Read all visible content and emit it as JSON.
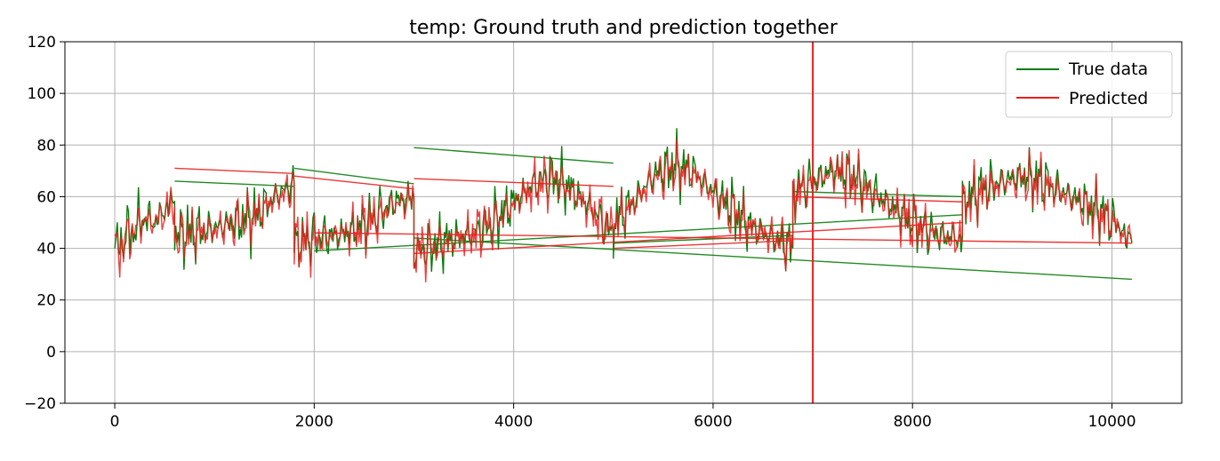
{
  "chart_data": {
    "type": "line",
    "title": "temp: Ground truth and prediction together",
    "xlabel": "",
    "ylabel": "",
    "xlim": [
      -500,
      10700
    ],
    "ylim": [
      -20,
      120
    ],
    "x_ticks": [
      0,
      2000,
      4000,
      6000,
      8000,
      10000
    ],
    "y_ticks": [
      -20,
      0,
      20,
      40,
      60,
      80,
      100,
      120
    ],
    "grid": true,
    "legend_position": "top-right",
    "vertical_marker": {
      "x": 7000,
      "color": "#e8201e"
    },
    "series": [
      {
        "name": "True data",
        "color": "#0a7d0a",
        "segments": [
          [
            [
              0,
              40
            ],
            [
              100,
              44
            ],
            [
              200,
              48
            ],
            [
              300,
              52
            ],
            [
              400,
              50
            ],
            [
              500,
              55
            ],
            [
              600,
              58
            ]
          ],
          [
            [
              600,
              45
            ],
            [
              800,
              46
            ],
            [
              1000,
              48
            ],
            [
              1200,
              50
            ],
            [
              1400,
              52
            ],
            [
              1600,
              60
            ],
            [
              1800,
              65
            ]
          ],
          [
            [
              1800,
              42
            ],
            [
              2000,
              44
            ],
            [
              2200,
              45
            ],
            [
              2400,
              47
            ],
            [
              2600,
              52
            ],
            [
              2800,
              58
            ],
            [
              3000,
              60
            ]
          ],
          [
            [
              3000,
              38
            ],
            [
              3200,
              41
            ],
            [
              3400,
              44
            ],
            [
              3600,
              46
            ],
            [
              3800,
              50
            ],
            [
              4000,
              58
            ],
            [
              4200,
              65
            ],
            [
              4400,
              68
            ],
            [
              4600,
              62
            ],
            [
              4800,
              55
            ],
            [
              5000,
              45
            ]
          ],
          [
            [
              5000,
              50
            ],
            [
              5200,
              58
            ],
            [
              5400,
              68
            ],
            [
              5600,
              72
            ],
            [
              5800,
              70
            ],
            [
              6000,
              62
            ],
            [
              6200,
              55
            ],
            [
              6400,
              48
            ],
            [
              6600,
              44
            ],
            [
              6800,
              40
            ]
          ],
          [
            [
              6800,
              62
            ],
            [
              7000,
              66
            ],
            [
              7200,
              70
            ],
            [
              7400,
              68
            ],
            [
              7600,
              62
            ],
            [
              7800,
              56
            ],
            [
              8000,
              50
            ],
            [
              8200,
              46
            ],
            [
              8400,
              44
            ],
            [
              8500,
              44
            ]
          ],
          [
            [
              8500,
              58
            ],
            [
              8700,
              63
            ],
            [
              8900,
              66
            ],
            [
              9100,
              68
            ],
            [
              9300,
              66
            ],
            [
              9500,
              62
            ],
            [
              9700,
              58
            ],
            [
              9900,
              54
            ],
            [
              10100,
              48
            ],
            [
              10200,
              42
            ]
          ]
        ],
        "connectors": [
          [
            [
              600,
              66
            ],
            [
              1800,
              64
            ]
          ],
          [
            [
              1800,
              71
            ],
            [
              3000,
              65
            ]
          ],
          [
            [
              3000,
              79
            ],
            [
              5000,
              73
            ]
          ],
          [
            [
              5000,
              42
            ],
            [
              6800,
              45
            ]
          ],
          [
            [
              6800,
              62
            ],
            [
              8500,
              60
            ]
          ],
          [
            [
              2000,
              39
            ],
            [
              8500,
              53
            ]
          ],
          [
            [
              3000,
              44
            ],
            [
              10200,
              28
            ]
          ]
        ]
      },
      {
        "name": "Predicted",
        "color": "#e8201e",
        "segments": [
          [
            [
              0,
              38
            ],
            [
              100,
              43
            ],
            [
              200,
              47
            ],
            [
              300,
              51
            ],
            [
              400,
              50
            ],
            [
              500,
              54
            ],
            [
              600,
              56
            ]
          ],
          [
            [
              600,
              44
            ],
            [
              800,
              46
            ],
            [
              1000,
              47
            ],
            [
              1200,
              50
            ],
            [
              1400,
              52
            ],
            [
              1600,
              59
            ],
            [
              1800,
              64
            ]
          ],
          [
            [
              1800,
              42
            ],
            [
              2000,
              43
            ],
            [
              2200,
              45
            ],
            [
              2400,
              47
            ],
            [
              2600,
              51
            ],
            [
              2800,
              57
            ],
            [
              3000,
              59
            ]
          ],
          [
            [
              3000,
              39
            ],
            [
              3200,
              41
            ],
            [
              3400,
              43
            ],
            [
              3600,
              46
            ],
            [
              3800,
              50
            ],
            [
              4000,
              57
            ],
            [
              4200,
              64
            ],
            [
              4400,
              67
            ],
            [
              4600,
              61
            ],
            [
              4800,
              54
            ],
            [
              5000,
              46
            ]
          ],
          [
            [
              5000,
              50
            ],
            [
              5200,
              57
            ],
            [
              5400,
              67
            ],
            [
              5600,
              71
            ],
            [
              5800,
              69
            ],
            [
              6000,
              61
            ],
            [
              6200,
              54
            ],
            [
              6400,
              48
            ],
            [
              6600,
              44
            ],
            [
              6800,
              41
            ]
          ],
          [
            [
              6800,
              61
            ],
            [
              7000,
              65
            ],
            [
              7200,
              70
            ],
            [
              7400,
              67
            ],
            [
              7600,
              61
            ],
            [
              7800,
              55
            ],
            [
              8000,
              50
            ],
            [
              8200,
              46
            ],
            [
              8400,
              44
            ],
            [
              8500,
              45
            ]
          ],
          [
            [
              8500,
              57
            ],
            [
              8700,
              62
            ],
            [
              8900,
              65
            ],
            [
              9100,
              67
            ],
            [
              9300,
              65
            ],
            [
              9500,
              61
            ],
            [
              9700,
              57
            ],
            [
              9900,
              53
            ],
            [
              10100,
              47
            ],
            [
              10200,
              43
            ]
          ]
        ],
        "connectors": [
          [
            [
              600,
              71
            ],
            [
              1800,
              69
            ]
          ],
          [
            [
              1800,
              68
            ],
            [
              3000,
              63
            ]
          ],
          [
            [
              3000,
              67
            ],
            [
              5000,
              64
            ]
          ],
          [
            [
              5000,
              40
            ],
            [
              6800,
              43
            ]
          ],
          [
            [
              6800,
              60
            ],
            [
              8500,
              58
            ]
          ],
          [
            [
              2000,
              46
            ],
            [
              10200,
              42
            ]
          ],
          [
            [
              3000,
              38
            ],
            [
              8500,
              50
            ]
          ]
        ]
      }
    ]
  }
}
